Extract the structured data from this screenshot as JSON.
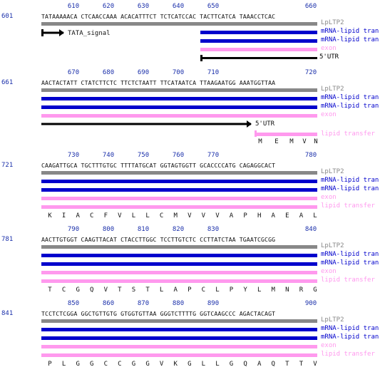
{
  "colors": {
    "source": "#888888",
    "mrna": "#0000cc",
    "exon": "#ff99ee",
    "lipid": "#ff99ee",
    "black": "#000000",
    "number": "#1a2faa"
  },
  "blocks": [
    {
      "start": "601",
      "ruler": [
        "610",
        "620",
        "630",
        "640",
        "650",
        "660"
      ],
      "sequence": "TATAAAAACA CTCAACCAAA ACACATTTCT TCTCATCCAC TACTTCATCA TAAACCTCAC",
      "labels": {
        "source": "LpLTP2",
        "mrna1": "mRNA-lipid tran",
        "mrna2": "mRNA-lipid tran",
        "exon": "exon",
        "utr": "5'UTR"
      },
      "tata_label": "TATA_signal"
    },
    {
      "start": "661",
      "ruler": [
        "670",
        "680",
        "690",
        "700",
        "710",
        "720"
      ],
      "sequence": "AACTACTATT CTATCTTCTC TTCTCTAATT TTCATAATCA TTAAGAATGG AAATGGTTAA",
      "labels": {
        "source": "LpLTP2",
        "mrna1": "mRNA-lipid tran",
        "mrna2": "mRNA-lipid tran",
        "exon": "exon",
        "utr": "5'UTR",
        "lipid": "lipid transfer"
      },
      "aa": [
        "M",
        "E",
        "M",
        "V",
        "N"
      ]
    },
    {
      "start": "721",
      "ruler": [
        "730",
        "740",
        "750",
        "760",
        "770",
        "780"
      ],
      "sequence": "CAAGATTGCA TGCTTTGTGC TTTTATGCAT GGTAGTGGTT GCACCCCATG CAGAGGCACT",
      "labels": {
        "source": "LpLTP2",
        "mrna1": "mRNA-lipid tran",
        "mrna2": "mRNA-lipid tran",
        "exon": "exon",
        "lipid": "lipid transfer"
      },
      "aa": [
        "K",
        "I",
        "A",
        "C",
        "F",
        "V",
        "L",
        "L",
        "C",
        "M",
        "V",
        "V",
        "V",
        "A",
        "P",
        "H",
        "A",
        "E",
        "A",
        "L"
      ]
    },
    {
      "start": "781",
      "ruler": [
        "790",
        "800",
        "810",
        "820",
        "830",
        "840"
      ],
      "sequence": "AACTTGTGGT CAAGTTACAT CTACCTTGGC TCCTTGTCTC CCTTATCTAA TGAATCGCGG",
      "labels": {
        "source": "LpLTP2",
        "mrna1": "mRNA-lipid tran",
        "mrna2": "mRNA-lipid tran",
        "exon": "exon",
        "lipid": "lipid transfer"
      },
      "aa": [
        "T",
        "C",
        "G",
        "Q",
        "V",
        "T",
        "S",
        "T",
        "L",
        "A",
        "P",
        "C",
        "L",
        "P",
        "Y",
        "L",
        "M",
        "N",
        "R",
        "G"
      ]
    },
    {
      "start": "841",
      "ruler": [
        "850",
        "860",
        "870",
        "880",
        "890",
        "900"
      ],
      "sequence": "TCCTCTCGGA GGCTGTTGTG GTGGTGTTAA GGGTCTTTTG GGTCAAGCCC AGACTACAGT",
      "labels": {
        "source": "LpLTP2",
        "mrna1": "mRNA-lipid tran",
        "mrna2": "mRNA-lipid tran",
        "exon": "exon",
        "lipid": "lipid transfer"
      },
      "aa": [
        "P",
        "L",
        "G",
        "G",
        "C",
        "C",
        "G",
        "G",
        "V",
        "K",
        "G",
        "L",
        "L",
        "G",
        "Q",
        "A",
        "Q",
        "T",
        "T",
        "V"
      ]
    }
  ]
}
